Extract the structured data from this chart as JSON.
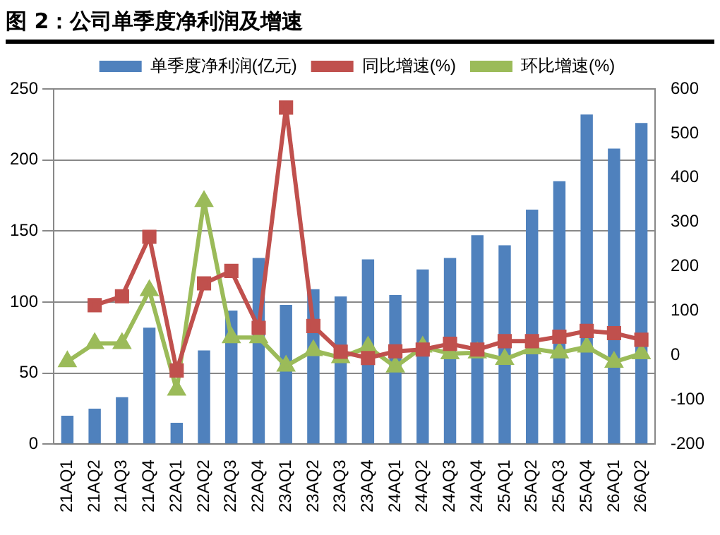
{
  "chart_data": {
    "type": "bar",
    "title": "图 2：公司单季度净利润及增速",
    "categories": [
      "21AQ1",
      "21AQ2",
      "21AQ3",
      "21AQ4",
      "22AQ1",
      "22AQ2",
      "22AQ3",
      "22AQ4",
      "23AQ1",
      "23AQ2",
      "23AQ3",
      "23AQ4",
      "24AQ1",
      "24AQ2",
      "24AQ3",
      "24AQ4",
      "25AQ1",
      "25AQ2",
      "25AQ3",
      "25AQ4",
      "26AQ1",
      "26AQ2"
    ],
    "series": [
      {
        "name": "单季度净利润(亿元)",
        "color": "#4f81bd",
        "values": [
          20,
          25,
          33,
          82,
          15,
          66,
          94,
          131,
          98,
          109,
          104,
          130,
          105,
          123,
          131,
          147,
          140,
          165,
          185,
          232,
          208,
          226
        ]
      },
      {
        "name": "同比增速(%)",
        "type": "line",
        "axis": "y2",
        "marker": "square",
        "color": "#c0504d",
        "values": [
          null,
          113,
          133,
          267,
          -34,
          162,
          190,
          62,
          558,
          66,
          8,
          -6,
          9,
          13,
          26,
          13,
          32,
          32,
          42,
          55,
          50,
          35
        ]
      },
      {
        "name": "环比增速(%)",
        "type": "line",
        "axis": "y2",
        "marker": "triangle",
        "color": "#9bbb59",
        "values": [
          -14,
          27,
          27,
          146,
          -78,
          347,
          40,
          40,
          -24,
          11,
          -5,
          19,
          -26,
          19,
          4,
          6,
          -9,
          15,
          6,
          19,
          -15,
          4
        ]
      }
    ],
    "ylim": [
      0,
      250
    ],
    "yticks": [
      0,
      50,
      100,
      150,
      200,
      250
    ],
    "y2lim": [
      -200,
      600
    ],
    "y2ticks": [
      -200,
      -100,
      0,
      100,
      200,
      300,
      400,
      500,
      600
    ],
    "grid": "y",
    "legend": "top"
  }
}
